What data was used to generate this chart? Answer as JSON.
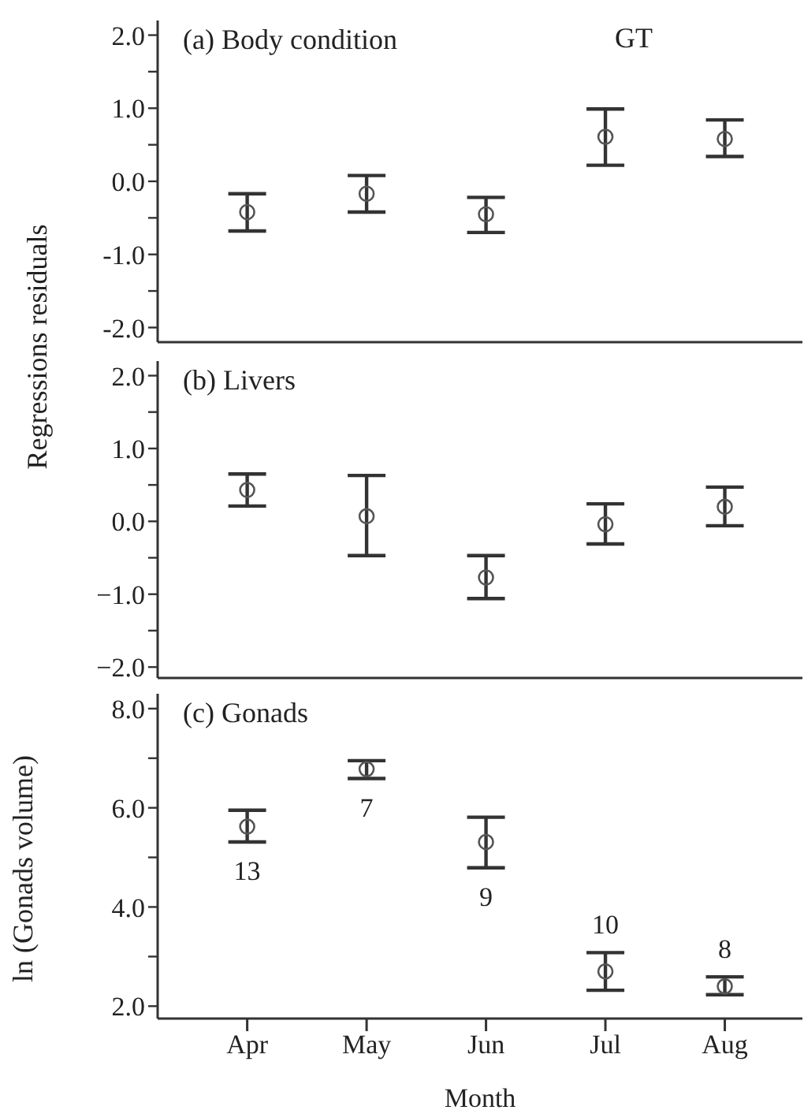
{
  "chart_data": [
    {
      "type": "scatter",
      "title": "(a) Body condition",
      "ylabel": "Regressions residuals",
      "annotations": [
        "GT"
      ],
      "categories": [
        null,
        null,
        null,
        null,
        null
      ],
      "series": [
        {
          "color": "#555555",
          "values": [
            -0.42,
            -0.17,
            -0.45,
            0.61,
            0.58
          ],
          "errors": [
            [
              -0.68,
              -0.17
            ],
            [
              -0.42,
              0.08
            ],
            [
              -0.7,
              -0.22
            ],
            [
              0.22,
              0.99
            ],
            [
              0.34,
              0.84
            ]
          ]
        }
      ],
      "ylim": [
        -2.2,
        2.2
      ],
      "yticks": [
        {
          "value": -2,
          "label": "-2.0"
        },
        {
          "value": -1.5,
          "label": null
        },
        {
          "value": -1,
          "label": "-1.0"
        },
        {
          "value": -0.5,
          "label": null
        },
        {
          "value": 0,
          "label": "0.0"
        },
        {
          "value": 0.5,
          "label": null
        },
        {
          "value": 1,
          "label": "1.0"
        },
        {
          "value": 1.5,
          "label": null
        },
        {
          "value": 2,
          "label": "2.0"
        }
      ],
      "tick_labels": "y",
      "marker": "circle",
      "grid": false,
      "legend": false
    },
    {
      "type": "scatter",
      "title": "(b) Livers",
      "categories": [
        null,
        null,
        null,
        null,
        null
      ],
      "series": [
        {
          "color": "#555555",
          "values": [
            0.43,
            0.07,
            -0.77,
            -0.04,
            0.2
          ],
          "errors": [
            [
              0.21,
              0.65
            ],
            [
              -0.47,
              0.63
            ],
            [
              -1.06,
              -0.47
            ],
            [
              -0.31,
              0.24
            ],
            [
              -0.06,
              0.47
            ]
          ]
        }
      ],
      "ylim": [
        -2.15,
        2.2
      ],
      "yticks": [
        {
          "value": -2,
          "label": "−2.0"
        },
        {
          "value": -1.5,
          "label": null
        },
        {
          "value": -1,
          "label": "−1.0"
        },
        {
          "value": -0.5,
          "label": null
        },
        {
          "value": 0,
          "label": "0.0"
        },
        {
          "value": 0.5,
          "label": null
        },
        {
          "value": 1,
          "label": "1.0"
        },
        {
          "value": 1.5,
          "label": null
        },
        {
          "value": 2,
          "label": "2.0"
        }
      ],
      "tick_labels": "y",
      "marker": "circle",
      "grid": false,
      "legend": false
    },
    {
      "type": "scatter",
      "title": "(c) Gonads",
      "xlabel": "Month",
      "ylabel": "ln (Gonads volume)",
      "categories": [
        "Apr",
        "May",
        "Jun",
        "Jul",
        "Aug"
      ],
      "series": [
        {
          "color": "#555555",
          "values": [
            5.62,
            6.78,
            5.31,
            2.7,
            2.4
          ],
          "errors": [
            [
              5.31,
              5.95
            ],
            [
              6.59,
              6.95
            ],
            [
              4.79,
              5.81
            ],
            [
              2.32,
              3.08
            ],
            [
              2.23,
              2.59
            ]
          ]
        }
      ],
      "annotations": [
        "13",
        "7",
        "9",
        "10",
        "8"
      ],
      "ylim": [
        1.75,
        8.3
      ],
      "yticks": [
        {
          "value": 2,
          "label": "2.0"
        },
        {
          "value": 3,
          "label": null
        },
        {
          "value": 4,
          "label": "4.0"
        },
        {
          "value": 5,
          "label": null
        },
        {
          "value": 6,
          "label": "6.0"
        },
        {
          "value": 7,
          "label": null
        },
        {
          "value": 8,
          "label": "8.0"
        }
      ],
      "marker": "circle",
      "grid": false,
      "legend": false
    }
  ]
}
